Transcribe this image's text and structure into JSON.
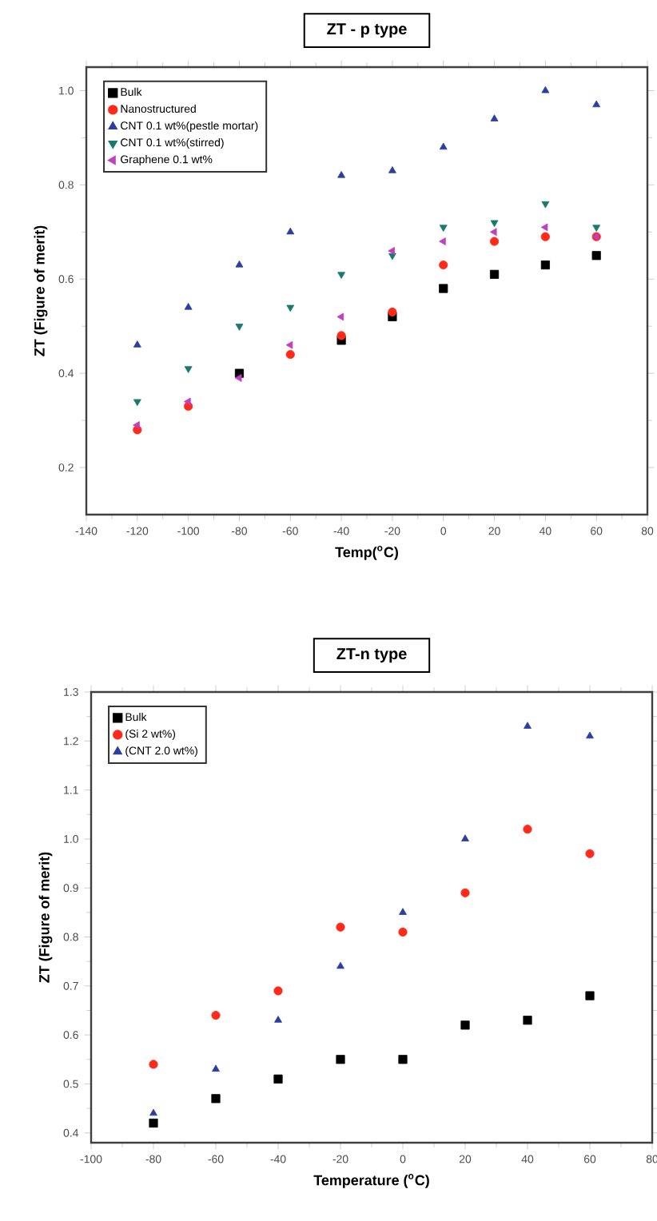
{
  "chart_data": [
    {
      "type": "scatter",
      "title": "ZT - p type",
      "xlabel": "Temp($^{o}$C)",
      "ylabel": "ZT (Figure of merit)",
      "legend": "top left",
      "grid": false,
      "x": [
        -120,
        -100,
        -80,
        -60,
        -40,
        -20,
        0,
        20,
        40,
        60
      ],
      "xlim": [
        -140,
        80
      ],
      "xticks": [
        -140,
        -120,
        -100,
        -80,
        -60,
        -40,
        -20,
        0,
        20,
        40,
        60,
        80
      ],
      "ylim": [
        0.1,
        1.05
      ],
      "yticks": [
        0.2,
        0.4,
        0.6,
        0.8,
        {
          "value": 1.0,
          "label": "1.0"
        }
      ],
      "series": [
        {
          "name": "Bulk",
          "color": "#000000",
          "marker": "square",
          "values": [
            null,
            null,
            0.4,
            null,
            0.47,
            0.52,
            0.58,
            0.61,
            0.63,
            0.65
          ]
        },
        {
          "name": "Nanostructured",
          "color": "#ff2a1a",
          "marker": "circle",
          "values": [
            0.28,
            0.33,
            null,
            0.44,
            0.48,
            0.53,
            0.63,
            0.68,
            0.69,
            0.69
          ]
        },
        {
          "name": "CNT 0.1 wt%(pestle mortar)",
          "color": "#2a3fa0",
          "marker": "triangle",
          "values": [
            0.46,
            0.54,
            0.63,
            0.7,
            0.82,
            0.83,
            0.88,
            0.94,
            1.0,
            0.97
          ]
        },
        {
          "name": "CNT 0.1 wt%(stirred)",
          "color": "#1a7a6e",
          "marker": "triangle-down",
          "values": [
            0.34,
            0.41,
            0.5,
            0.54,
            0.61,
            0.65,
            0.71,
            0.72,
            0.76,
            0.71
          ]
        },
        {
          "name": "Graphene 0.1 wt%",
          "color": "#c040c0",
          "marker": "triangle-left",
          "values": [
            0.29,
            0.34,
            0.39,
            0.46,
            0.52,
            0.66,
            0.68,
            0.7,
            0.71,
            0.69
          ]
        }
      ]
    },
    {
      "type": "scatter",
      "title": "ZT-n type",
      "xlabel": "Temperature ($^{o}$C)",
      "ylabel": "ZT (Figure of merit)",
      "legend": "top left",
      "grid": false,
      "x": [
        -80,
        -60,
        -40,
        -20,
        0,
        20,
        40,
        60
      ],
      "xlim": [
        -100,
        80
      ],
      "xticks": [
        -100,
        -80,
        -60,
        -40,
        -20,
        0,
        20,
        40,
        60,
        80
      ],
      "ylim": [
        0.38,
        1.3
      ],
      "yticks": [
        0.4,
        0.5,
        0.6,
        0.7,
        0.8,
        0.9,
        {
          "value": 1.0,
          "label": "1.0"
        },
        1.1,
        1.2,
        1.3
      ],
      "series": [
        {
          "name": "Bulk",
          "color": "#000000",
          "marker": "square",
          "values": [
            0.42,
            0.47,
            0.51,
            0.55,
            0.55,
            0.62,
            0.63,
            0.68
          ]
        },
        {
          "name": "(Si 2 wt%)",
          "color": "#ff2a1a",
          "marker": "circle",
          "values": [
            0.54,
            0.64,
            0.69,
            0.82,
            0.81,
            0.89,
            1.02,
            0.97
          ]
        },
        {
          "name": "(CNT 2.0 wt%)",
          "color": "#2a3fa0",
          "marker": "triangle",
          "values": [
            0.44,
            0.53,
            0.63,
            0.74,
            0.85,
            1.0,
            1.23,
            1.21
          ]
        }
      ]
    }
  ]
}
